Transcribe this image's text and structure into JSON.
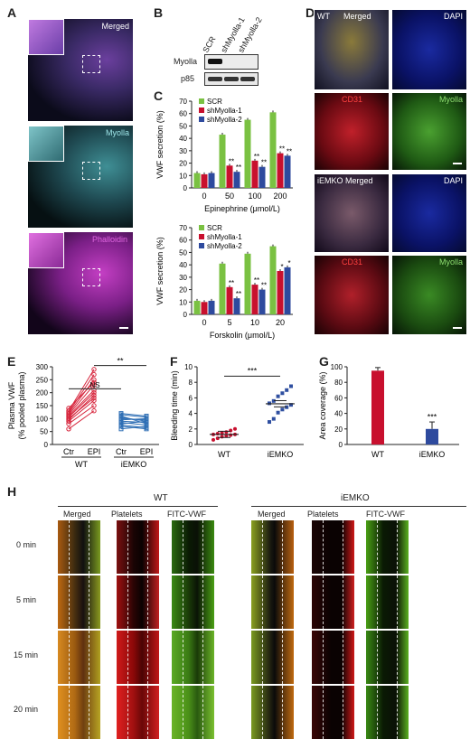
{
  "panels": {
    "A": "A",
    "B": "B",
    "C": "C",
    "D": "D",
    "E": "E",
    "F": "F",
    "G": "G",
    "H": "H"
  },
  "panelA": {
    "merged": "Merged",
    "myolla": "Myolla",
    "phalloidin": "Phalloidin"
  },
  "panelB": {
    "lanes": [
      "SCR",
      "shMyolla-1",
      "shMyolla-2"
    ],
    "rows": [
      "Myolla",
      "p85"
    ]
  },
  "panelC": {
    "ylabel": "VWF secretion (%)",
    "legend": [
      "SCR",
      "shMyolla-1",
      "shMyolla-2"
    ],
    "colors": [
      "#7ac142",
      "#c8102e",
      "#2e4a9e"
    ],
    "top": {
      "xlabel": "Epinephrine (μmol/L)",
      "categories": [
        "0",
        "50",
        "100",
        "200"
      ],
      "ylim": [
        0,
        70
      ],
      "yticks": [
        "0",
        "10",
        "20",
        "30",
        "40",
        "50",
        "60",
        "70"
      ],
      "series": [
        [
          12,
          43,
          55,
          61
        ],
        [
          11,
          18,
          22,
          28
        ],
        [
          12,
          13,
          17,
          26
        ]
      ],
      "stars": [
        [
          "",
          "",
          ""
        ],
        [
          "",
          "**",
          "**"
        ],
        [
          "",
          "**",
          "**"
        ],
        [
          "",
          "**",
          "**"
        ]
      ]
    },
    "bottom": {
      "xlabel": "Forskolin (μmol/L)",
      "categories": [
        "0",
        "5",
        "10",
        "20"
      ],
      "ylim": [
        0,
        70
      ],
      "yticks": [
        "0",
        "10",
        "20",
        "30",
        "40",
        "50",
        "60",
        "70"
      ],
      "series": [
        [
          11,
          41,
          49,
          55
        ],
        [
          10,
          22,
          24,
          35
        ],
        [
          11,
          13,
          20,
          38
        ]
      ],
      "stars": [
        [
          "",
          "",
          ""
        ],
        [
          "",
          "**",
          "**"
        ],
        [
          "",
          "**",
          "**"
        ],
        [
          "",
          "*",
          "*"
        ]
      ]
    }
  },
  "panelD": {
    "wt": "WT",
    "iemko": "iEMKO",
    "merged": "Merged",
    "dapi": "DAPI",
    "cd31": "CD31",
    "myolla": "Myolla"
  },
  "panelE": {
    "ylabel1": "Plasma VWF",
    "ylabel2": "(% pooled plasma)",
    "yticks": [
      "0",
      "50",
      "100",
      "150",
      "200",
      "250",
      "300"
    ],
    "xticks": [
      "Ctr",
      "EPI",
      "Ctr",
      "EPI"
    ],
    "groups": [
      "WT",
      "iEMKO"
    ],
    "ns": "NS",
    "sig": "**"
  },
  "panelF": {
    "ylabel": "Bleeding time (min)",
    "yticks": [
      "0",
      "2",
      "4",
      "6",
      "8",
      "10"
    ],
    "groups": [
      "WT",
      "iEMKO"
    ],
    "sig": "***",
    "wt": [
      0.6,
      0.8,
      1.0,
      1.1,
      1.2,
      1.3,
      1.3,
      1.4,
      1.5,
      1.6,
      1.8,
      2.0
    ],
    "ko": [
      2.9,
      3.3,
      4.1,
      4.5,
      4.8,
      5.1,
      5.3,
      5.6,
      6.2,
      6.6,
      7.0,
      7.5
    ]
  },
  "panelG": {
    "ylabel": "Area coverage (%)",
    "yticks": [
      "0",
      "20",
      "40",
      "60",
      "80",
      "100"
    ],
    "groups": [
      "WT",
      "iEMKO"
    ],
    "values": [
      95,
      20
    ],
    "sig": "***"
  },
  "panelH": {
    "wt": "WT",
    "iemko": "iEMKO",
    "cols": [
      "Merged",
      "Platelets",
      "FITC-VWF"
    ],
    "rows": [
      "0 min",
      "5 min",
      "15 min",
      "20 min"
    ]
  }
}
